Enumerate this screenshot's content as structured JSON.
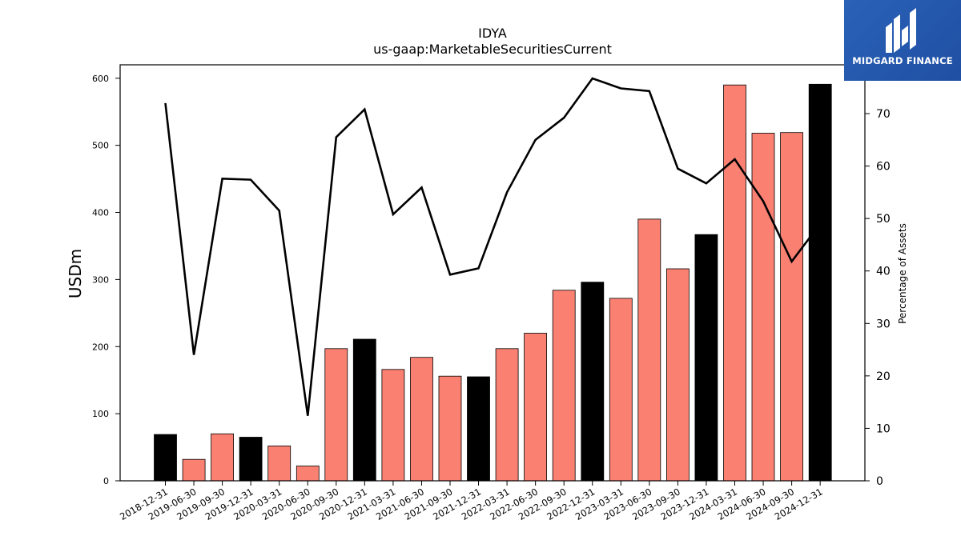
{
  "header": {
    "title": "IDYA",
    "subtitle": "us-gaap:MarketableSecuritiesCurrent"
  },
  "logo": {
    "text": "MIDGARD FINANCE",
    "background": "#2a62b8",
    "icon": "midgard-logo-icon"
  },
  "colors": {
    "annual_bar": "#000000",
    "quarter_bar": "#fa8072",
    "line": "#000000"
  },
  "chart_data": {
    "type": "bar",
    "title": "IDYA",
    "subtitle": "us-gaap:MarketableSecuritiesCurrent",
    "ylabel": "USDm",
    "y2label": "Percentage of Assets",
    "ylim": [
      0,
      620
    ],
    "y2lim": [
      0,
      79.3
    ],
    "yticks": [
      0,
      100,
      200,
      300,
      400,
      500,
      600
    ],
    "y2ticks": [
      0,
      10,
      20,
      30,
      40,
      50,
      60,
      70
    ],
    "categories": [
      "2018-12-31",
      "2019-06-30",
      "2019-09-30",
      "2019-12-31",
      "2020-03-31",
      "2020-06-30",
      "2020-09-30",
      "2020-12-31",
      "2021-03-31",
      "2021-06-30",
      "2021-09-30",
      "2021-12-31",
      "2022-03-31",
      "2022-06-30",
      "2022-09-30",
      "2022-12-31",
      "2023-03-31",
      "2023-06-30",
      "2023-09-30",
      "2023-12-31",
      "2024-03-31",
      "2024-06-30",
      "2024-09-30",
      "2024-12-31"
    ],
    "series": [
      {
        "axis": "left",
        "type": "bar",
        "values": [
          69,
          32,
          70,
          65,
          52,
          22,
          197,
          211,
          166,
          184,
          156,
          155,
          197,
          220,
          284,
          296,
          272,
          390,
          316,
          367,
          590,
          518,
          519,
          591
        ],
        "annual": [
          true,
          false,
          false,
          true,
          false,
          false,
          false,
          true,
          false,
          false,
          false,
          true,
          false,
          false,
          false,
          true,
          false,
          false,
          false,
          true,
          false,
          false,
          false,
          true
        ]
      },
      {
        "axis": "right",
        "type": "line",
        "values": [
          72,
          24,
          57.6,
          57.4,
          51.5,
          12.4,
          65.5,
          70.8,
          50.8,
          55.9,
          39.3,
          40.5,
          55,
          65,
          69.2,
          76.7,
          74.8,
          74.3,
          59.5,
          56.7,
          61.3,
          53.3,
          41.8,
          49
        ]
      }
    ],
    "grid": false,
    "legend": "none"
  }
}
